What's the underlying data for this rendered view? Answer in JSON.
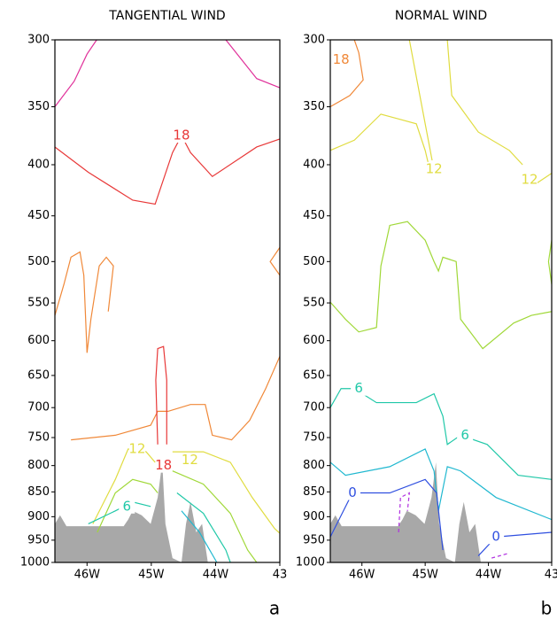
{
  "chart_data": [
    {
      "type": "contour",
      "title": "TANGENTIAL WIND",
      "panel_label": "a",
      "xlim": [
        -46.5,
        -43
      ],
      "ylim": [
        1000,
        300
      ],
      "log_y": true,
      "xticks": [
        {
          "value": -46,
          "label": "46W"
        },
        {
          "value": -45,
          "label": "45W"
        },
        {
          "value": -44,
          "label": "44W"
        },
        {
          "value": -43,
          "label": "43"
        }
      ],
      "yticks": [
        300,
        350,
        400,
        450,
        500,
        550,
        600,
        650,
        700,
        750,
        800,
        850,
        900,
        950,
        1000
      ],
      "terrain": {
        "color": "#a8a8a8",
        "x": [
          -46.5,
          -46.5,
          -46.42,
          -46.32,
          -45.43,
          -45.36,
          -45.29,
          -45.15,
          -45.01,
          -44.9,
          -44.83,
          -44.78,
          -44.67,
          -44.53,
          -44.46,
          -44.39,
          -44.3,
          -44.21,
          -44.12
        ],
        "y": [
          1000,
          915,
          897,
          920,
          920,
          906,
          888,
          897,
          915,
          861,
          794,
          915,
          990,
          1000,
          915,
          870,
          933,
          915,
          1000
        ]
      },
      "contours": [
        {
          "color": "#e0309a",
          "dashed": false,
          "x": [
            -46.5,
            -46.2,
            -46.0,
            -45.85
          ],
          "y": [
            350,
            330,
            310,
            300
          ]
        },
        {
          "color": "#e0309a",
          "dashed": false,
          "x": [
            -43.84,
            -43.36,
            -43.0
          ],
          "y": [
            300,
            328,
            335
          ]
        },
        {
          "color": "#e83838",
          "dashed": false,
          "x": [
            -46.5,
            -45.98,
            -45.29,
            -44.94,
            -44.67,
            -44.53,
            -44.39,
            -44.05,
            -43.36,
            -43.0
          ],
          "y": [
            384,
            407,
            434,
            438,
            389,
            374,
            389,
            411,
            384,
            377
          ]
        },
        {
          "color": "#f08838",
          "dashed": false,
          "x": [
            -46.5,
            -46.36,
            -46.25,
            -46.11,
            -46.05,
            -46.0,
            -45.94,
            -45.81,
            -45.7,
            -45.59,
            -45.67
          ],
          "y": [
            566,
            527,
            495,
            489,
            516,
            617,
            571,
            505,
            495,
            505,
            561
          ]
        },
        {
          "color": "#f08838",
          "dashed": false,
          "x": [
            -46.25,
            -45.56,
            -45.01,
            -44.9,
            -44.74,
            -44.39,
            -44.16,
            -44.05,
            -43.75,
            -43.47,
            -43.22,
            -43.0
          ],
          "y": [
            754,
            746,
            729,
            706,
            706,
            695,
            695,
            746,
            754,
            721,
            670,
            622
          ]
        },
        {
          "color": "#f08838",
          "dashed": false,
          "x": [
            -43.0,
            -43.15,
            -43.0
          ],
          "y": [
            484,
            500,
            516
          ]
        },
        {
          "color": "#e83838",
          "dashed": false,
          "x": [
            -44.9,
            -44.93,
            -44.9,
            -44.81,
            -44.76,
            -44.76
          ],
          "y": [
            762,
            657,
            611,
            608,
            657,
            762
          ]
        },
        {
          "color": "#e0dc40",
          "dashed": false,
          "x": [
            -45.91,
            -45.56,
            -45.36,
            -45.08,
            -44.94
          ],
          "y": [
            915,
            826,
            770,
            775,
            794
          ]
        },
        {
          "color": "#e0dc40",
          "dashed": false,
          "x": [
            -44.67,
            -44.53,
            -44.19,
            -43.77,
            -43.43,
            -43.08,
            -43.0
          ],
          "y": [
            775,
            775,
            775,
            794,
            861,
            925,
            935
          ]
        },
        {
          "color": "#a0d838",
          "dashed": false,
          "x": [
            -45.84,
            -45.56,
            -45.29,
            -45.01,
            -44.9
          ],
          "y": [
            933,
            852,
            826,
            835,
            852
          ]
        },
        {
          "color": "#a0d838",
          "dashed": false,
          "x": [
            -44.67,
            -44.19,
            -43.77,
            -43.5,
            -43.36
          ],
          "y": [
            810,
            835,
            893,
            972,
            1000
          ]
        },
        {
          "color": "#20c8a8",
          "dashed": false,
          "x": [
            -45.98,
            -45.56,
            -45.29,
            -45.01
          ],
          "y": [
            915,
            888,
            870,
            879
          ]
        },
        {
          "color": "#20c8a8",
          "dashed": false,
          "x": [
            -44.6,
            -44.19,
            -43.84,
            -43.77
          ],
          "y": [
            852,
            893,
            972,
            1000
          ]
        },
        {
          "color": "#20b8d0",
          "dashed": false,
          "x": [
            -44.53,
            -44.25,
            -43.98
          ],
          "y": [
            888,
            933,
            1000
          ]
        }
      ],
      "labels": [
        {
          "value": 18,
          "color": "#e83838",
          "x": -44.53,
          "y": 374
        },
        {
          "value": 18,
          "color": "#e83838",
          "x": -44.81,
          "y": 800
        },
        {
          "value": 12,
          "color": "#e0dc40",
          "x": -45.22,
          "y": 770
        },
        {
          "value": 12,
          "color": "#e0dc40",
          "x": -44.4,
          "y": 790
        },
        {
          "value": 6,
          "color": "#20c8a8",
          "x": -45.38,
          "y": 879
        }
      ]
    },
    {
      "type": "contour",
      "title": "NORMAL WIND",
      "panel_label": "b",
      "xlim": [
        -46.5,
        -43
      ],
      "ylim": [
        1000,
        300
      ],
      "log_y": true,
      "xticks": [
        {
          "value": -46,
          "label": "46W"
        },
        {
          "value": -45,
          "label": "45W"
        },
        {
          "value": -44,
          "label": "44W"
        },
        {
          "value": -43,
          "label": "43"
        }
      ],
      "yticks": [
        300,
        350,
        400,
        450,
        500,
        550,
        600,
        650,
        700,
        750,
        800,
        850,
        900,
        950,
        1000
      ],
      "terrain": {
        "color": "#a8a8a8",
        "x": [
          -46.5,
          -46.5,
          -46.42,
          -46.32,
          -45.43,
          -45.36,
          -45.29,
          -45.15,
          -45.01,
          -44.9,
          -44.83,
          -44.78,
          -44.67,
          -44.53,
          -44.46,
          -44.39,
          -44.3,
          -44.21,
          -44.12
        ],
        "y": [
          1000,
          915,
          897,
          920,
          920,
          906,
          888,
          897,
          915,
          861,
          794,
          915,
          990,
          1000,
          915,
          870,
          933,
          915,
          1000
        ]
      },
      "contours": [
        {
          "color": "#f08838",
          "dashed": false,
          "x": [
            -46.5,
            -46.19,
            -45.98,
            -46.05,
            -46.12
          ],
          "y": [
            350,
            341,
            329,
            309,
            300
          ]
        },
        {
          "color": "#e0dc40",
          "dashed": false,
          "x": [
            -46.5,
            -46.12,
            -45.7,
            -45.42,
            -45.14,
            -45.0,
            -44.93
          ],
          "y": [
            387,
            378,
            356,
            360,
            364,
            387,
            404
          ]
        },
        {
          "color": "#e0dc40",
          "dashed": false,
          "x": [
            -45.25,
            -45.0,
            -44.89
          ],
          "y": [
            300,
            364,
            396
          ]
        },
        {
          "color": "#e0dc40",
          "dashed": false,
          "x": [
            -44.65,
            -44.58,
            -44.16,
            -43.67,
            -43.46
          ],
          "y": [
            300,
            341,
            371,
            387,
            400
          ]
        },
        {
          "color": "#e0dc40",
          "dashed": false,
          "x": [
            -43.25,
            -43.0
          ],
          "y": [
            418,
            408
          ]
        },
        {
          "color": "#a0d838",
          "dashed": false,
          "x": [
            -46.5,
            -46.26,
            -46.05,
            -45.77,
            -45.7,
            -45.56,
            -45.28,
            -45.0,
            -44.86,
            -44.79,
            -44.72,
            -44.51,
            -44.44,
            -44.09,
            -43.6,
            -43.32,
            -43.0
          ],
          "y": [
            549,
            571,
            588,
            582,
            505,
            460,
            456,
            476,
            500,
            511,
            495,
            500,
            571,
            611,
            576,
            566,
            561
          ]
        },
        {
          "color": "#a0d838",
          "dashed": false,
          "x": [
            -43.0,
            -43.05,
            -43.0
          ],
          "y": [
            476,
            500,
            527
          ]
        },
        {
          "color": "#20c8a8",
          "dashed": false,
          "x": [
            -46.5,
            -46.33,
            -46.12,
            -45.77,
            -45.14,
            -44.86,
            -44.72,
            -44.65,
            -44.44,
            -44.02,
            -43.53,
            -43.0
          ],
          "y": [
            700,
            670,
            670,
            692,
            692,
            678,
            714,
            762,
            746,
            762,
            818,
            826
          ]
        },
        {
          "color": "#20b8d0",
          "dashed": false,
          "x": [
            -46.5,
            -46.26,
            -45.56,
            -45.0,
            -44.86,
            -44.79,
            -44.65,
            -44.44,
            -43.88,
            -43.0
          ],
          "y": [
            794,
            818,
            802,
            770,
            810,
            888,
            802,
            810,
            861,
            906
          ]
        },
        {
          "color": "#3050e0",
          "dashed": false,
          "x": [
            -46.5,
            -46.15,
            -45.56,
            -45.0,
            -44.82,
            -44.72
          ],
          "y": [
            943,
            852,
            852,
            826,
            852,
            972
          ]
        },
        {
          "color": "#3050e0",
          "dashed": false,
          "x": [
            -44.16,
            -43.88,
            -43.0
          ],
          "y": [
            985,
            943,
            933
          ]
        },
        {
          "color": "#b030e0",
          "dashed": true,
          "x": [
            -45.42,
            -45.39,
            -45.25,
            -45.28
          ],
          "y": [
            933,
            861,
            852,
            888
          ]
        },
        {
          "color": "#b030e0",
          "dashed": true,
          "x": [
            -43.95,
            -43.7
          ],
          "y": [
            990,
            980
          ]
        }
      ],
      "labels": [
        {
          "value": 18,
          "color": "#f08838",
          "x": -46.33,
          "y": 314
        },
        {
          "value": 12,
          "color": "#e0dc40",
          "x": -44.86,
          "y": 404
        },
        {
          "value": 12,
          "color": "#e0dc40",
          "x": -43.35,
          "y": 414
        },
        {
          "value": 6,
          "color": "#20c8a8",
          "x": -46.05,
          "y": 670
        },
        {
          "value": 6,
          "color": "#20c8a8",
          "x": -44.37,
          "y": 746
        },
        {
          "value": 0,
          "color": "#3050e0",
          "x": -46.15,
          "y": 852
        },
        {
          "value": 0,
          "color": "#3050e0",
          "x": -43.88,
          "y": 943
        }
      ]
    }
  ]
}
